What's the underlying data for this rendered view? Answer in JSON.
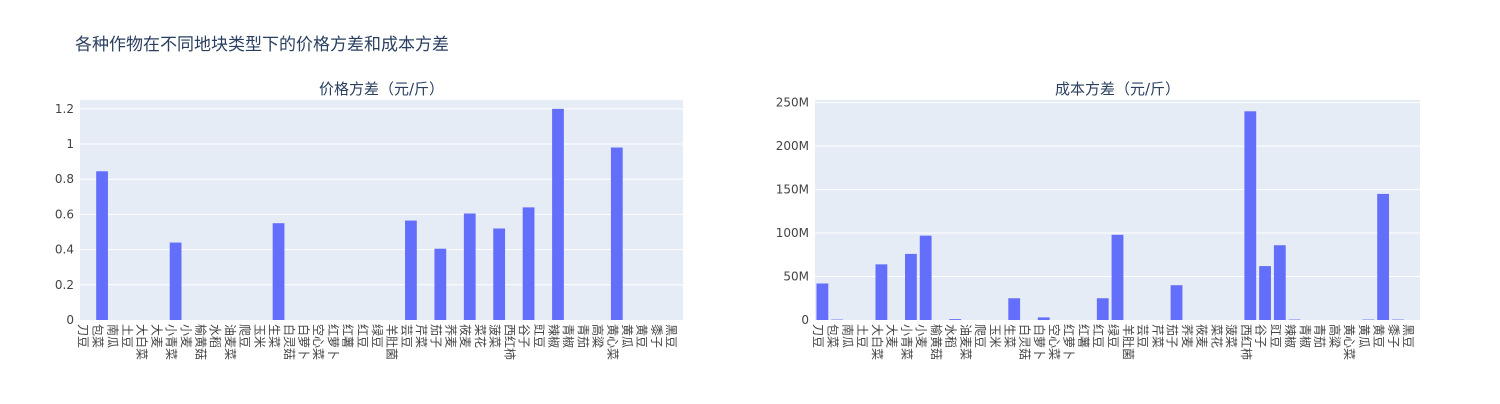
{
  "title": "各种作物在不同地块类型下的价格方差和成本方差",
  "bar_color": "#636efa",
  "plot_bg": "#e5ecf6",
  "chart_data": [
    {
      "type": "bar",
      "title": "价格方差（元/斤）",
      "categories": [
        "刀豆",
        "包菜",
        "南瓜",
        "土豆",
        "大白菜",
        "大麦",
        "小青菜",
        "小麦",
        "榆黄菇",
        "水稻",
        "油麦菜",
        "爬豆",
        "玉米",
        "生菜",
        "白灵菇",
        "白萝卜",
        "空心菜",
        "红萝卜",
        "红薯",
        "红豆",
        "绿豆",
        "羊肚菌",
        "芸豆",
        "芹菜",
        "茄子",
        "荞麦",
        "莜麦",
        "菜花",
        "菠菜",
        "西红柿",
        "谷子",
        "豇豆",
        "辣椒",
        "青椒",
        "青茄",
        "高粱",
        "黄心菜",
        "黄瓜",
        "黄豆",
        "黍子",
        "黑豆"
      ],
      "values": [
        0,
        0.845,
        0,
        0,
        0,
        0,
        0.44,
        0,
        0,
        0,
        0,
        0,
        0,
        0.55,
        0,
        0,
        0,
        0,
        0,
        0,
        0,
        0,
        0.565,
        0,
        0.405,
        0,
        0.605,
        0,
        0.52,
        0,
        0.64,
        0,
        1.2,
        0,
        0,
        0,
        0.98,
        0,
        0,
        0,
        0
      ],
      "ylim": [
        0,
        1.25
      ],
      "yticks": [
        0,
        0.2,
        0.4,
        0.6,
        0.8,
        1,
        1.2
      ],
      "ytick_labels": [
        "0",
        "0.2",
        "0.4",
        "0.6",
        "0.8",
        "1",
        "1.2"
      ]
    },
    {
      "type": "bar",
      "title": "成本方差（元/斤）",
      "categories": [
        "刀豆",
        "包菜",
        "南瓜",
        "土豆",
        "大白菜",
        "大麦",
        "小青菜",
        "小麦",
        "榆黄菇",
        "水稻",
        "油麦菜",
        "爬豆",
        "玉米",
        "生菜",
        "白灵菇",
        "白萝卜",
        "空心菜",
        "红萝卜",
        "红薯",
        "红豆",
        "绿豆",
        "羊肚菌",
        "芸豆",
        "芹菜",
        "茄子",
        "荞麦",
        "莜麦",
        "菜花",
        "菠菜",
        "西红柿",
        "谷子",
        "豇豆",
        "辣椒",
        "青椒",
        "青茄",
        "高粱",
        "黄心菜",
        "黄瓜",
        "黄豆",
        "黍子",
        "黑豆"
      ],
      "values": [
        42,
        0.5,
        0,
        0,
        64,
        0,
        76,
        97,
        0,
        1,
        0,
        0,
        0,
        25,
        0,
        3,
        0,
        0,
        0,
        25,
        98,
        0,
        0,
        0,
        40,
        0,
        0,
        0,
        0,
        240,
        62,
        86,
        0.5,
        0,
        0,
        0,
        0,
        0.5,
        145,
        0.5,
        0
      ],
      "ylim": [
        0,
        253
      ],
      "yticks": [
        0,
        50,
        100,
        150,
        200,
        250
      ],
      "ytick_labels": [
        "0",
        "50M",
        "100M",
        "150M",
        "200M",
        "250M"
      ]
    }
  ]
}
